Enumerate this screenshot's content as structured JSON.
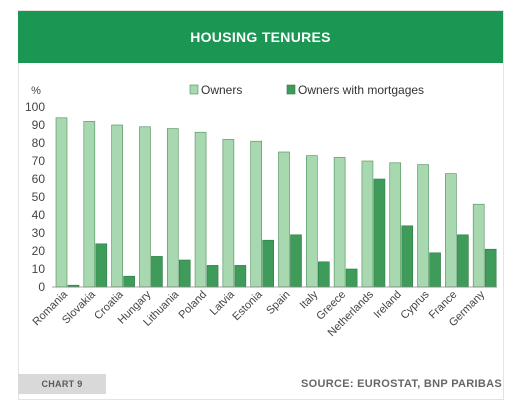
{
  "header": {
    "title": "HOUSING TENURES"
  },
  "footer": {
    "chart_label": "CHART 9",
    "source": "SOURCE: EUROSTAT, BNP PARIBAS"
  },
  "colors": {
    "header": "#1b9653",
    "owners": "#a8d8af",
    "mortgages": "#3f9b59",
    "owners_stroke": "#4b8e5a",
    "mortgages_stroke": "#2e7d47"
  },
  "chart_data": {
    "type": "bar",
    "title": "HOUSING TENURES",
    "ylabel": "%",
    "ylim": [
      0,
      100
    ],
    "yticks": [
      0,
      10,
      20,
      30,
      40,
      50,
      60,
      70,
      80,
      90,
      100
    ],
    "grid": false,
    "legend_position": "top",
    "categories": [
      "Romania",
      "Slovakia",
      "Croatia",
      "Hungary",
      "Lithuania",
      "Poland",
      "Latvia",
      "Estonia",
      "Spain",
      "Italy",
      "Greece",
      "Netherlands",
      "Ireland",
      "Cyprus",
      "France",
      "Germany"
    ],
    "series": [
      {
        "name": "Owners",
        "values": [
          94,
          92,
          90,
          89,
          88,
          86,
          82,
          81,
          75,
          73,
          72,
          70,
          69,
          68,
          63,
          46
        ]
      },
      {
        "name": "Owners with mortgages",
        "values": [
          1,
          24,
          6,
          17,
          15,
          12,
          12,
          26,
          29,
          14,
          10,
          60,
          34,
          19,
          29,
          21
        ]
      }
    ]
  }
}
